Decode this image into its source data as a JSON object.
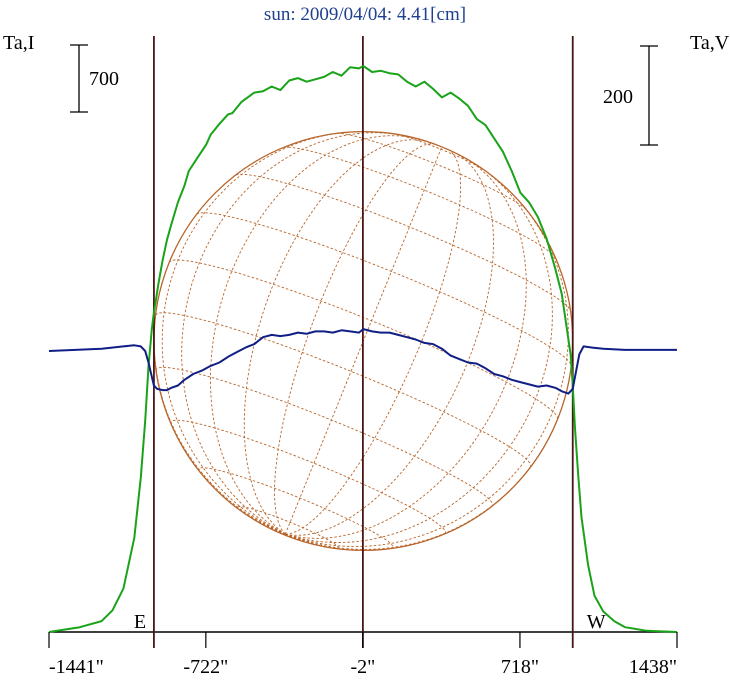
{
  "chart_data": {
    "type": "line",
    "title": "sun: 2009/04/04: 4.41[cm]",
    "ylabel_left": "Ta,I",
    "ylabel_right": "Ta,V",
    "x_unit": "arcsec",
    "xlim": [
      -1441,
      1438
    ],
    "x_ticks": [
      -1441,
      -722,
      -2,
      718,
      1438
    ],
    "x_tick_labels": [
      "-1441\"",
      "-722\"",
      "-2\"",
      "718\"",
      "1438\""
    ],
    "scale_bars": [
      {
        "label": "700",
        "axis": "left"
      },
      {
        "label": "200",
        "axis": "right"
      }
    ],
    "markers": [
      {
        "label": "E",
        "x": -960
      },
      {
        "label": "W",
        "x": 960
      }
    ],
    "vertical_lines_x": [
      -960,
      -2,
      960
    ],
    "grid": false,
    "series": [
      {
        "name": "I",
        "color": "#19a319",
        "axis": "left",
        "x": [
          -1441,
          -1300,
          -1200,
          -1150,
          -1100,
          -1050,
          -1020,
          -1000,
          -985,
          -970,
          -960,
          -950,
          -940,
          -920,
          -900,
          -880,
          -850,
          -820,
          -800,
          -760,
          -720,
          -700,
          -660,
          -620,
          -600,
          -560,
          -500,
          -460,
          -420,
          -380,
          -340,
          -300,
          -260,
          -220,
          -180,
          -140,
          -100,
          -60,
          -20,
          0,
          40,
          80,
          120,
          160,
          200,
          240,
          280,
          320,
          360,
          400,
          440,
          480,
          520,
          560,
          600,
          640,
          680,
          720,
          760,
          800,
          840,
          880,
          910,
          930,
          950,
          960,
          970,
          985,
          1000,
          1030,
          1060,
          1100,
          1150,
          1200,
          1300,
          1438
        ],
        "y": [
          0,
          40,
          90,
          180,
          360,
          780,
          1280,
          1750,
          2200,
          2500,
          2650,
          2760,
          2880,
          3080,
          3250,
          3380,
          3560,
          3700,
          3820,
          3930,
          4040,
          4120,
          4210,
          4290,
          4300,
          4390,
          4470,
          4480,
          4520,
          4490,
          4570,
          4590,
          4560,
          4580,
          4600,
          4640,
          4610,
          4680,
          4670,
          4690,
          4640,
          4650,
          4630,
          4620,
          4560,
          4520,
          4560,
          4500,
          4430,
          4470,
          4420,
          4360,
          4250,
          4200,
          4090,
          3980,
          3820,
          3640,
          3560,
          3440,
          3260,
          3010,
          2800,
          2550,
          2300,
          2050,
          1700,
          1300,
          950,
          560,
          300,
          170,
          90,
          40,
          10,
          0
        ]
      },
      {
        "name": "V",
        "color": "#0f1f86",
        "axis": "right",
        "x": [
          -1441,
          -1200,
          -1100,
          -1050,
          -1020,
          -1000,
          -985,
          -970,
          -960,
          -945,
          -920,
          -900,
          -880,
          -850,
          -820,
          -780,
          -740,
          -700,
          -660,
          -620,
          -580,
          -540,
          -500,
          -460,
          -420,
          -380,
          -340,
          -300,
          -260,
          -220,
          -180,
          -140,
          -100,
          -60,
          -20,
          0,
          40,
          80,
          120,
          160,
          200,
          240,
          280,
          320,
          360,
          400,
          440,
          480,
          520,
          560,
          600,
          640,
          680,
          720,
          760,
          800,
          840,
          880,
          910,
          940,
          960,
          975,
          990,
          1010,
          1050,
          1100,
          1200,
          1438
        ],
        "y": [
          0,
          2,
          4,
          5,
          4,
          0,
          -10,
          -22,
          -30,
          -33,
          -34,
          -34,
          -32,
          -30,
          -25,
          -20,
          -17,
          -13,
          -10,
          -5,
          -1,
          3,
          6,
          12,
          14,
          13,
          14,
          16,
          15,
          17,
          17,
          16,
          18,
          17,
          16,
          19,
          17,
          16,
          16,
          14,
          12,
          10,
          7,
          6,
          2,
          -4,
          -7,
          -10,
          -11,
          -15,
          -20,
          -22,
          -25,
          -27,
          -29,
          -31,
          -30,
          -32,
          -35,
          -37,
          -33,
          -18,
          -3,
          4,
          3,
          2,
          1,
          1
        ]
      }
    ],
    "overlay": {
      "name": "solar-disk-grid",
      "color": "#b8652a"
    }
  }
}
